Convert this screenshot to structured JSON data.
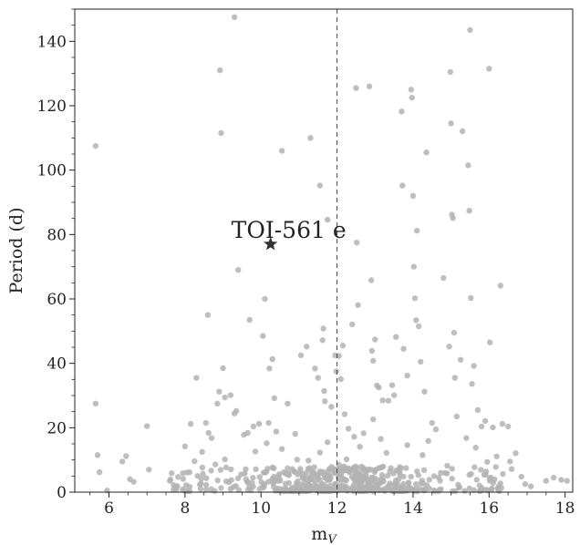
{
  "chart_data": {
    "type": "scatter",
    "xlabel": "m",
    "xlabel_subscript": "V",
    "ylabel": "Period (d)",
    "xlim": [
      5.1,
      18.2
    ],
    "ylim": [
      0,
      150
    ],
    "xticks": [
      6,
      8,
      10,
      12,
      14,
      16,
      18
    ],
    "yticks": [
      0,
      20,
      40,
      60,
      80,
      100,
      120,
      140
    ],
    "x_minor_step": 0.5,
    "y_minor_step": 5,
    "grid": false,
    "reference_line": {
      "x": 12,
      "style": "dashed",
      "color": "#444444"
    },
    "colors": {
      "points": "#b3b3b3",
      "highlight": "#333333",
      "axes": "#222222"
    },
    "highlight": {
      "x": 10.25,
      "y": 77,
      "label": "TOI-561 e",
      "marker": "star"
    },
    "series": [
      {
        "values": [
          [
            5.65,
            107.5
          ],
          [
            5.65,
            27.5
          ],
          [
            5.7,
            11.5
          ],
          [
            5.75,
            6.2
          ],
          [
            5.95,
            0.5
          ],
          [
            6.35,
            9.5
          ],
          [
            6.45,
            11.2
          ],
          [
            6.55,
            4
          ],
          [
            6.65,
            3.2
          ],
          [
            7.0,
            20.5
          ],
          [
            7.05,
            7
          ],
          [
            7.6,
            3.5
          ],
          [
            7.7,
            2.2
          ],
          [
            7.95,
            4.1
          ],
          [
            8.0,
            14.2
          ],
          [
            8.05,
            6.1
          ],
          [
            8.15,
            21.2
          ],
          [
            8.25,
            9.6
          ],
          [
            8.3,
            35.5
          ],
          [
            8.45,
            12.5
          ],
          [
            8.55,
            21.5
          ],
          [
            8.6,
            55
          ],
          [
            8.62,
            18.4
          ],
          [
            8.7,
            16.8
          ],
          [
            8.85,
            27.5
          ],
          [
            8.9,
            31.2
          ],
          [
            8.92,
            131
          ],
          [
            8.95,
            111.5
          ],
          [
            9.0,
            38.5
          ],
          [
            9.05,
            29.4
          ],
          [
            9.2,
            30.1
          ],
          [
            9.3,
            147.5
          ],
          [
            9.35,
            25.2
          ],
          [
            9.4,
            69
          ],
          [
            9.55,
            17.8
          ],
          [
            9.65,
            18.4
          ],
          [
            9.7,
            53.5
          ],
          [
            9.8,
            20.4
          ],
          [
            9.95,
            21.2
          ],
          [
            10.05,
            48.5
          ],
          [
            10.1,
            60
          ],
          [
            10.2,
            21.5
          ],
          [
            10.22,
            38.4
          ],
          [
            10.3,
            41.3
          ],
          [
            10.35,
            29.2
          ],
          [
            10.4,
            18.8
          ],
          [
            10.55,
            106
          ],
          [
            10.7,
            27.5
          ],
          [
            10.9,
            18.1
          ],
          [
            11.05,
            42.5
          ],
          [
            11.2,
            45.2
          ],
          [
            11.3,
            110
          ],
          [
            11.42,
            38.4
          ],
          [
            11.5,
            35.5
          ],
          [
            11.55,
            95.2
          ],
          [
            11.62,
            47.2
          ],
          [
            11.64,
            50.8
          ],
          [
            11.66,
            31.4
          ],
          [
            11.68,
            28.2
          ],
          [
            11.75,
            84.6
          ],
          [
            11.85,
            26.5
          ],
          [
            11.95,
            42.5
          ],
          [
            11.98,
            37.5
          ],
          [
            12.05,
            42.3
          ],
          [
            12.1,
            35.1
          ],
          [
            12.15,
            45.5
          ],
          [
            12.2,
            24.2
          ],
          [
            12.3,
            19.7
          ],
          [
            12.4,
            52.1
          ],
          [
            12.5,
            125.5
          ],
          [
            12.52,
            77.5
          ],
          [
            12.55,
            58.1
          ],
          [
            12.7,
            18.3
          ],
          [
            12.85,
            126
          ],
          [
            12.9,
            65.8
          ],
          [
            12.92,
            43.9
          ],
          [
            12.95,
            40.8
          ],
          [
            13.0,
            47.4
          ],
          [
            13.05,
            33.1
          ],
          [
            13.1,
            32.5
          ],
          [
            13.2,
            28.5
          ],
          [
            13.35,
            28.4
          ],
          [
            13.45,
            33.2
          ],
          [
            13.5,
            30.1
          ],
          [
            13.55,
            48.2
          ],
          [
            13.7,
            118.2
          ],
          [
            13.72,
            95.2
          ],
          [
            13.75,
            44.5
          ],
          [
            13.85,
            36.2
          ],
          [
            13.95,
            125
          ],
          [
            13.97,
            122.5
          ],
          [
            14.0,
            92
          ],
          [
            14.02,
            70
          ],
          [
            14.05,
            60.2
          ],
          [
            14.08,
            53.4
          ],
          [
            14.1,
            81.2
          ],
          [
            14.15,
            51.5
          ],
          [
            14.2,
            40.5
          ],
          [
            14.3,
            31.2
          ],
          [
            14.35,
            105.5
          ],
          [
            14.5,
            21.5
          ],
          [
            14.6,
            19.5
          ],
          [
            14.8,
            66.5
          ],
          [
            14.95,
            45.2
          ],
          [
            14.98,
            130.5
          ],
          [
            15.0,
            114.5
          ],
          [
            15.02,
            86.2
          ],
          [
            15.05,
            85.1
          ],
          [
            15.08,
            49.5
          ],
          [
            15.1,
            35.5
          ],
          [
            15.15,
            23.5
          ],
          [
            15.25,
            41.1
          ],
          [
            15.3,
            112.1
          ],
          [
            15.45,
            101.5
          ],
          [
            15.48,
            87.4
          ],
          [
            15.5,
            143.5
          ],
          [
            15.52,
            60.3
          ],
          [
            15.55,
            33.6
          ],
          [
            15.6,
            39.2
          ],
          [
            15.7,
            25.5
          ],
          [
            15.8,
            20.4
          ],
          [
            15.9,
            22.1
          ],
          [
            16.0,
            131.5
          ],
          [
            16.02,
            46.5
          ],
          [
            16.1,
            20.1
          ],
          [
            16.3,
            64.1
          ],
          [
            16.35,
            21.2
          ],
          [
            16.5,
            20.4
          ],
          [
            16.55,
            9.5
          ],
          [
            16.7,
            12.1
          ],
          [
            16.85,
            4.8
          ],
          [
            16.95,
            2.5
          ],
          [
            17.1,
            1.8
          ],
          [
            17.5,
            3.5
          ],
          [
            17.7,
            4.5
          ],
          [
            17.9,
            3.8
          ],
          [
            18.05,
            3.5
          ],
          [
            12.05,
            8.5
          ],
          [
            12.25,
            10.2
          ],
          [
            11.25,
            9.8
          ],
          [
            10.55,
            13.4
          ],
          [
            13.3,
            12.2
          ],
          [
            14.25,
            11.5
          ],
          [
            15.65,
            13.8
          ],
          [
            9.85,
            12.6
          ],
          [
            11.75,
            15.5
          ],
          [
            12.6,
            14.1
          ],
          [
            13.85,
            14.6
          ],
          [
            10.95,
            10.1
          ],
          [
            12.95,
            22.6
          ],
          [
            9.3,
            24.4
          ],
          [
            9.05,
            10.2
          ],
          [
            11.55,
            12.3
          ],
          [
            13.65,
            7.8
          ],
          [
            14.9,
            8.2
          ],
          [
            15.95,
            9.4
          ],
          [
            10.15,
            15.2
          ],
          [
            12.45,
            17.2
          ],
          [
            13.15,
            16.5
          ],
          [
            14.4,
            15.9
          ],
          [
            15.4,
            16.8
          ],
          [
            16.2,
            11.1
          ],
          [
            8.8,
            8.6
          ],
          [
            10.7,
            7.4
          ],
          [
            12.8,
            6.7
          ],
          [
            11.35,
            6.2
          ]
        ],
        "dense_cluster": {
          "x_range": [
            7.6,
            16.6
          ],
          "y_range": [
            0.3,
            8
          ],
          "count": 520,
          "peak_x": 12.0
        }
      }
    ]
  }
}
